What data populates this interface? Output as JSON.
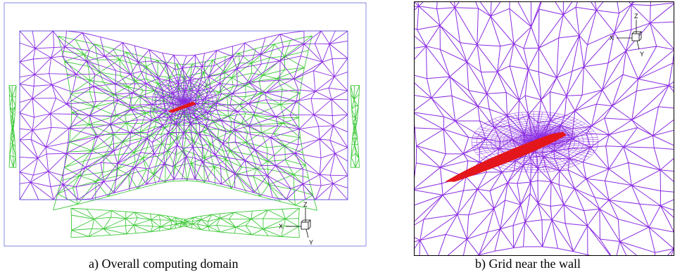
{
  "panels": [
    {
      "id": "a",
      "caption": "a) Overall computing domain",
      "axis_labels": {
        "up": "Z",
        "left": "X",
        "down": "Y"
      },
      "colors": {
        "outer_mesh": "#3ec93a",
        "inner_mesh": "#8a2be2",
        "body": "#e3161b",
        "frame": "#000000"
      }
    },
    {
      "id": "b",
      "caption": "b) Grid near the wall",
      "axis_labels": {
        "up": "Z",
        "left": "X",
        "down": "Y"
      },
      "colors": {
        "inner_mesh": "#8a2be2",
        "body": "#e3161b",
        "frame": "#000000"
      }
    }
  ]
}
